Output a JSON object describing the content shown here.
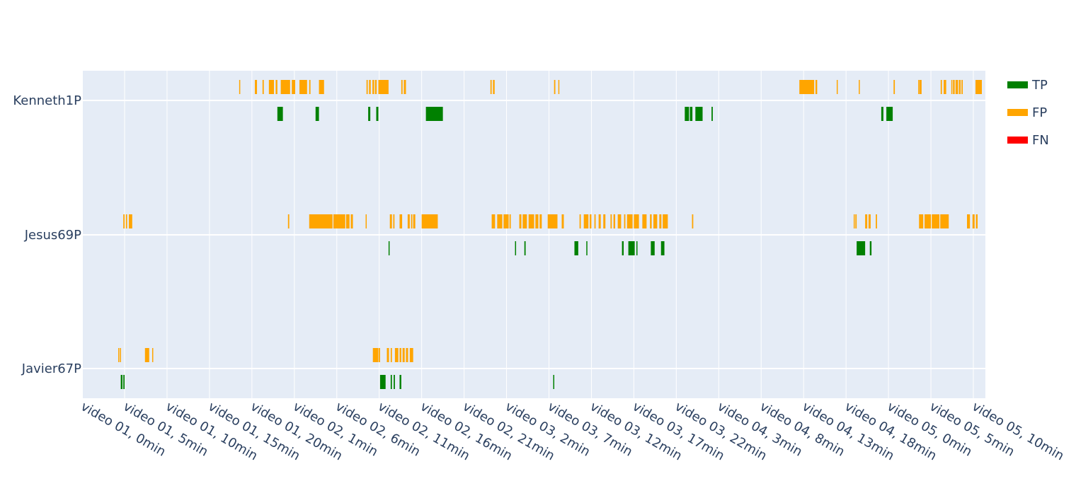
{
  "chart_data": {
    "type": "timeline",
    "categories": [
      "Kenneth1P",
      "Jesus69P",
      "Javier67P"
    ],
    "x_ticks": [
      "video 01, 0min",
      "video 01, 5min",
      "video 01, 10min",
      "video 01, 15min",
      "video 01, 20min",
      "video 02, 1min",
      "video 02, 6min",
      "video 02, 11min",
      "video 02, 16min",
      "video 02, 21min",
      "video 03, 2min",
      "video 03, 7min",
      "video 03, 12min",
      "video 03, 17min",
      "video 03, 22min",
      "video 04, 3min",
      "video 04, 8min",
      "video 04, 13min",
      "video 04, 18min",
      "video 05, 0min",
      "video 05, 5min",
      "video 05, 10min"
    ],
    "x_range_ticks": [
      -1.0,
      20.2
    ],
    "legend": [
      {
        "name": "TP",
        "color": "#008000"
      },
      {
        "name": "FP",
        "color": "#ffa500"
      },
      {
        "name": "FN",
        "color": "#ff0000"
      }
    ],
    "legend_position": "top-right",
    "grid": true,
    "series": [
      {
        "name": "TP",
        "intervals": {
          "Kenneth1P": [
            [
              3.6,
              3.73
            ],
            [
              4.5,
              4.58
            ],
            [
              5.74,
              5.79
            ],
            [
              5.93,
              5.98
            ],
            [
              7.1,
              7.5
            ],
            [
              13.2,
              13.3
            ],
            [
              13.32,
              13.38
            ],
            [
              13.45,
              13.62
            ],
            [
              13.83,
              13.86
            ],
            [
              17.83,
              17.88
            ],
            [
              17.95,
              18.1
            ]
          ],
          "Jesus69P": [
            [
              6.22,
              6.24
            ],
            [
              9.2,
              9.22
            ],
            [
              9.42,
              9.45
            ],
            [
              10.6,
              10.69
            ],
            [
              10.88,
              10.9
            ],
            [
              11.72,
              11.76
            ],
            [
              11.87,
              12.02
            ],
            [
              12.06,
              12.08
            ],
            [
              12.4,
              12.49
            ],
            [
              12.64,
              12.72
            ],
            [
              17.25,
              17.45
            ],
            [
              17.56,
              17.6
            ]
          ],
          "Javier67P": [
            [
              -0.09,
              -0.05
            ],
            [
              -0.03,
              0.0
            ],
            [
              6.02,
              6.15
            ],
            [
              6.27,
              6.3
            ],
            [
              6.34,
              6.37
            ],
            [
              6.48,
              6.52
            ],
            [
              10.1,
              10.12
            ]
          ]
        }
      },
      {
        "name": "FP",
        "intervals": {
          "Kenneth1P": [
            [
              2.7,
              2.72
            ],
            [
              3.07,
              3.12
            ],
            [
              3.25,
              3.28
            ],
            [
              3.4,
              3.52
            ],
            [
              3.56,
              3.6
            ],
            [
              3.68,
              3.9
            ],
            [
              3.94,
              4.02
            ],
            [
              4.12,
              4.3
            ],
            [
              4.35,
              4.38
            ],
            [
              4.58,
              4.7
            ],
            [
              5.7,
              5.73
            ],
            [
              5.76,
              5.8
            ],
            [
              5.84,
              5.88
            ],
            [
              5.9,
              5.94
            ],
            [
              5.98,
              6.22
            ],
            [
              6.52,
              6.55
            ],
            [
              6.58,
              6.63
            ],
            [
              8.62,
              8.65
            ],
            [
              8.68,
              8.72
            ],
            [
              10.12,
              10.15
            ],
            [
              10.22,
              10.24
            ],
            [
              15.9,
              16.25
            ],
            [
              16.28,
              16.32
            ],
            [
              16.78,
              16.8
            ],
            [
              17.3,
              17.32
            ],
            [
              18.12,
              18.15
            ],
            [
              18.7,
              18.72
            ],
            [
              18.73,
              18.78
            ],
            [
              19.23,
              19.26
            ],
            [
              19.3,
              19.36
            ],
            [
              19.48,
              19.5
            ],
            [
              19.52,
              19.56
            ],
            [
              19.58,
              19.64
            ],
            [
              19.66,
              19.7
            ],
            [
              19.72,
              19.75
            ],
            [
              20.05,
              20.2
            ]
          ],
          "Jesus69P": [
            [
              -0.03,
              0.0
            ],
            [
              0.03,
              0.06
            ],
            [
              0.1,
              0.18
            ],
            [
              3.85,
              3.88
            ],
            [
              4.35,
              4.9
            ],
            [
              4.92,
              5.2
            ],
            [
              5.22,
              5.3
            ],
            [
              5.33,
              5.38
            ],
            [
              5.68,
              5.7
            ],
            [
              6.25,
              6.3
            ],
            [
              6.33,
              6.36
            ],
            [
              6.48,
              6.54
            ],
            [
              6.67,
              6.72
            ],
            [
              6.75,
              6.78
            ],
            [
              6.8,
              6.85
            ],
            [
              7.0,
              7.38
            ],
            [
              8.65,
              8.73
            ],
            [
              8.78,
              8.9
            ],
            [
              8.93,
              9.05
            ],
            [
              9.07,
              9.1
            ],
            [
              9.3,
              9.35
            ],
            [
              9.38,
              9.48
            ],
            [
              9.52,
              9.65
            ],
            [
              9.68,
              9.75
            ],
            [
              9.78,
              9.83
            ],
            [
              9.97,
              10.2
            ],
            [
              10.3,
              10.35
            ],
            [
              10.72,
              10.75
            ],
            [
              10.82,
              10.93
            ],
            [
              10.96,
              11.0
            ],
            [
              11.07,
              11.1
            ],
            [
              11.17,
              11.22
            ],
            [
              11.28,
              11.33
            ],
            [
              11.45,
              11.48
            ],
            [
              11.52,
              11.56
            ],
            [
              11.62,
              11.7
            ],
            [
              11.77,
              11.8
            ],
            [
              11.84,
              11.97
            ],
            [
              12.0,
              12.12
            ],
            [
              12.2,
              12.3
            ],
            [
              12.38,
              12.42
            ],
            [
              12.46,
              12.55
            ],
            [
              12.6,
              12.65
            ],
            [
              12.68,
              12.8
            ],
            [
              13.37,
              13.4
            ],
            [
              17.18,
              17.2
            ],
            [
              17.22,
              17.25
            ],
            [
              17.45,
              17.5
            ],
            [
              17.53,
              17.58
            ],
            [
              17.7,
              17.73
            ],
            [
              18.72,
              18.82
            ],
            [
              18.85,
              19.0
            ],
            [
              19.02,
              19.2
            ],
            [
              19.22,
              19.42
            ],
            [
              19.85,
              19.92
            ],
            [
              19.98,
              20.03
            ],
            [
              20.06,
              20.1
            ]
          ],
          "Javier67P": [
            [
              -0.15,
              -0.13
            ],
            [
              -0.11,
              -0.09
            ],
            [
              0.48,
              0.58
            ],
            [
              0.65,
              0.67
            ],
            [
              5.85,
              5.98
            ],
            [
              5.99,
              6.02
            ],
            [
              6.18,
              6.23
            ],
            [
              6.27,
              6.3
            ],
            [
              6.37,
              6.45
            ],
            [
              6.48,
              6.52
            ],
            [
              6.55,
              6.6
            ],
            [
              6.63,
              6.68
            ],
            [
              6.72,
              6.8
            ]
          ]
        }
      },
      {
        "name": "FN",
        "intervals": {
          "Kenneth1P": [],
          "Jesus69P": [],
          "Javier67P": []
        }
      }
    ]
  }
}
